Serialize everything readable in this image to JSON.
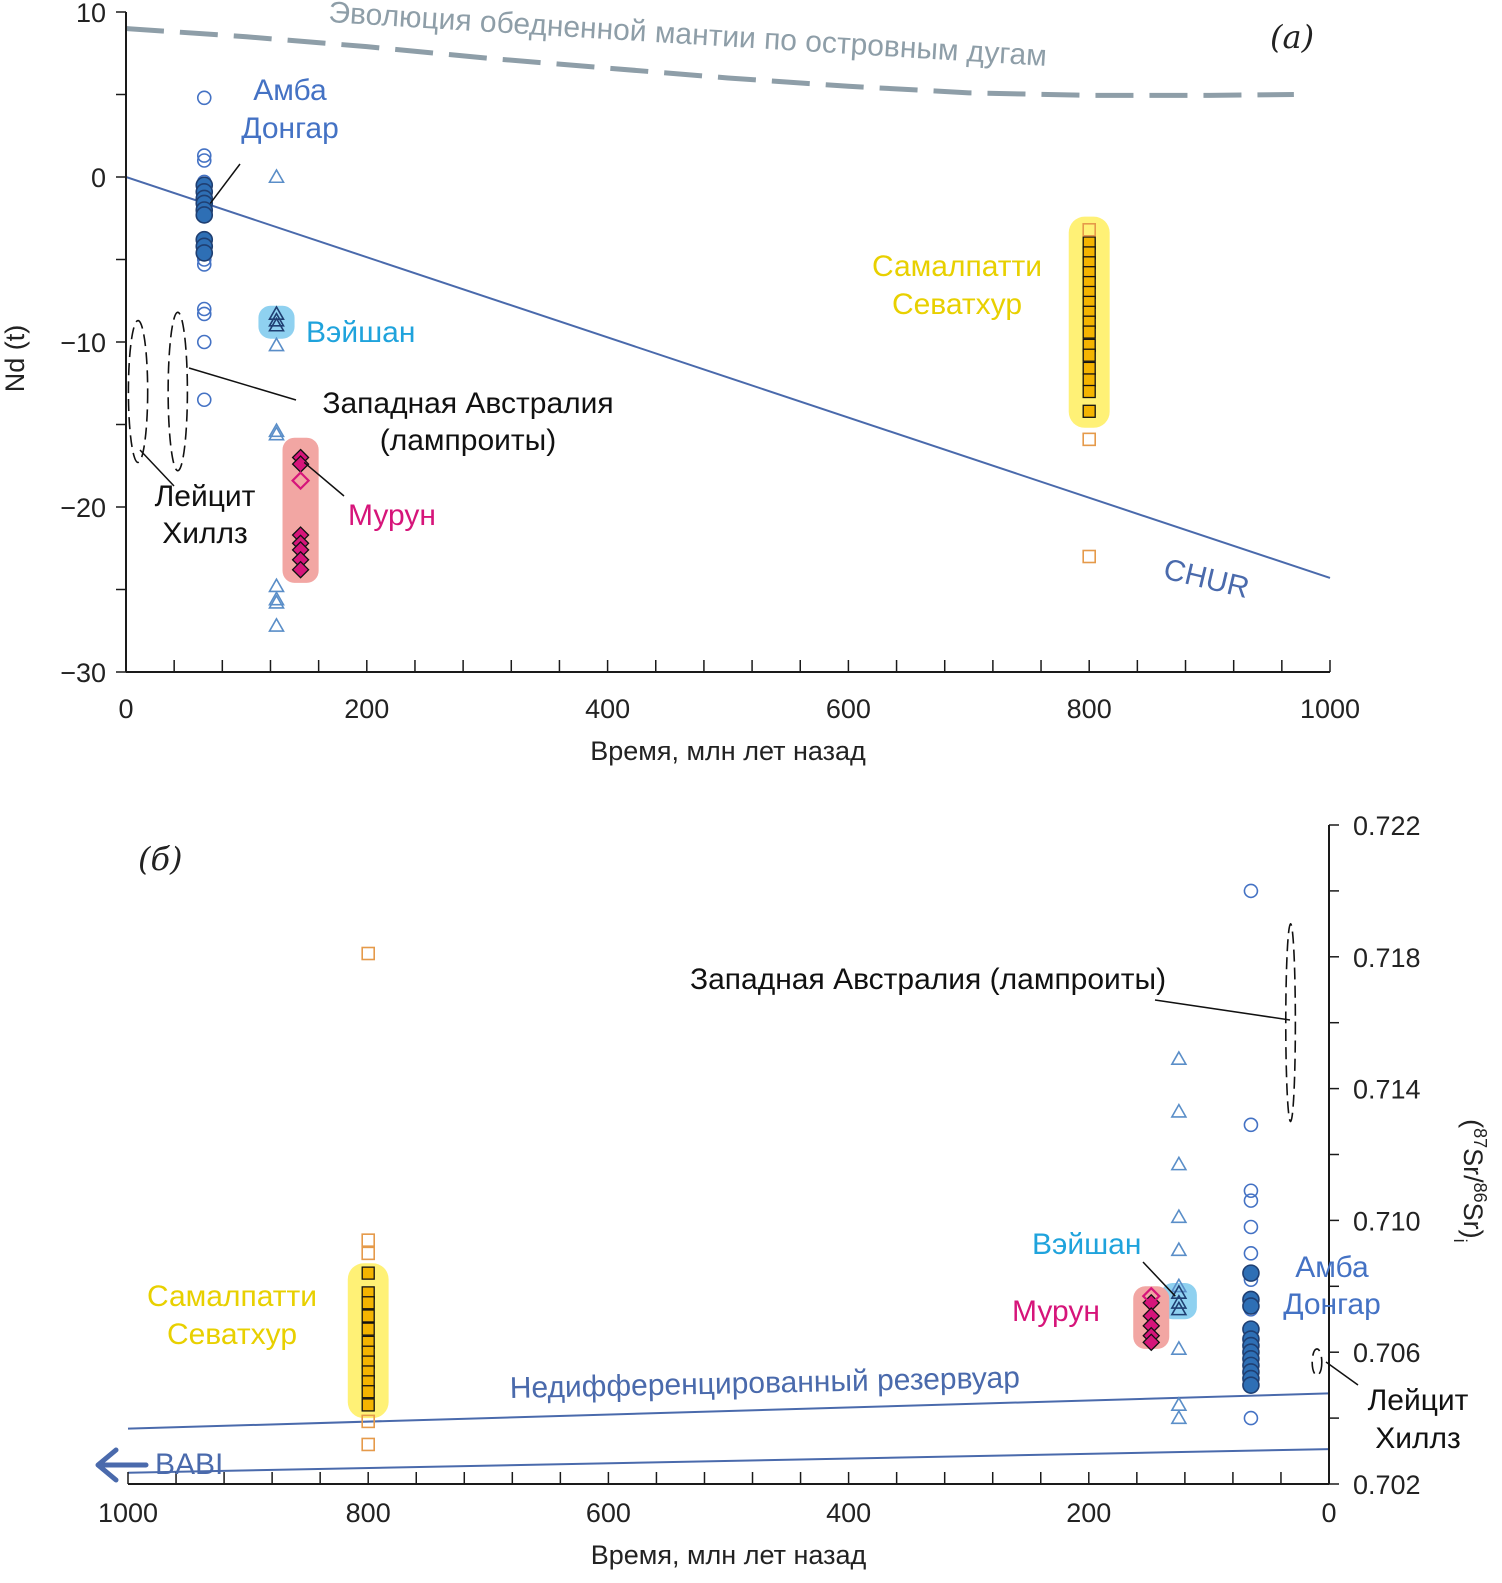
{
  "colors": {
    "axis": "#1a1a1a",
    "chur": "#4a6aac",
    "mantle": "#8e9ea8",
    "amba": "#4472c4",
    "amba_fill": "#2e6fb5",
    "weishan": "#1fa3dc",
    "weishan_hl": "#8fd1f0",
    "weishan_sym": "#5a8ec8",
    "murun": "#d6157a",
    "murun_hl": "#f2a6a3",
    "samal": "#e8d000",
    "samal_hl": "#fff176",
    "samal_fill": "#f4b400",
    "samal_open": "#e59a4a",
    "black": "#111111"
  },
  "chart_data": [
    {
      "id": "a",
      "type": "scatter",
      "panel_label": "(a)",
      "xlabel": "Время, млн лет назад",
      "ylabel": "Nd (t)",
      "xlim": [
        0,
        1000
      ],
      "ylim": [
        -30,
        10
      ],
      "x_ticks": [
        0,
        200,
        400,
        600,
        800,
        1000
      ],
      "x_tick_labels": [
        "0",
        "200",
        "400",
        "600",
        "800",
        "1000"
      ],
      "y_ticks": [
        -30,
        -20,
        -10,
        0,
        10
      ],
      "y_tick_labels": [
        "−30",
        "−20",
        "−10",
        "0",
        "10"
      ],
      "lines": [
        {
          "name": "CHUR",
          "label": "CHUR",
          "points": [
            [
              0,
              0
            ],
            [
              1000,
              -24.3
            ]
          ]
        },
        {
          "name": "mantle",
          "label": "Эволюция обедненной мантии по островным дугам",
          "dashed": true,
          "points": [
            [
              0,
              9.0
            ],
            [
              100,
              8.5
            ],
            [
              200,
              7.9
            ],
            [
              300,
              7.2
            ],
            [
              400,
              6.6
            ],
            [
              500,
              6.0
            ],
            [
              600,
              5.5
            ],
            [
              700,
              5.1
            ],
            [
              800,
              4.95
            ],
            [
              900,
              4.95
            ],
            [
              970,
              5.0
            ]
          ]
        }
      ],
      "groups": {
        "amba_open": {
          "x": 65,
          "y": [
            4.8,
            1.3,
            1.0,
            -0.3,
            -5.3,
            -5.0,
            -8.0,
            -8.3,
            -10.0,
            -13.5
          ]
        },
        "amba_filled": {
          "x": 65,
          "y": [
            -0.5,
            -0.9,
            -1.3,
            -1.6,
            -2.0,
            -2.3,
            -3.8,
            -4.2,
            -4.6
          ]
        },
        "weishan_open": {
          "x": 125,
          "y": [
            0.0,
            -10.2,
            -15.4,
            -15.6,
            -24.8,
            -25.6,
            -25.8,
            -27.2
          ]
        },
        "weishan_filled": {
          "x": 125,
          "y": [
            -8.3,
            -8.7,
            -9.0
          ]
        },
        "murun_filled": {
          "x": 145,
          "y": [
            -17.0,
            -17.4,
            -21.7,
            -22.2,
            -22.6,
            -23.2,
            -23.8
          ]
        },
        "murun_open": {
          "x": 145,
          "y": [
            -18.4
          ]
        },
        "samal_filled": {
          "x": 800,
          "y": [
            -4.0,
            -4.6,
            -5.2,
            -5.8,
            -6.4,
            -7.0,
            -7.6,
            -8.2,
            -8.8,
            -9.4,
            -10.2,
            -10.8,
            -11.6,
            -12.3,
            -13.0,
            -14.2
          ]
        },
        "samal_open": {
          "x": 800,
          "y": [
            -3.2,
            -15.9,
            -23.0
          ]
        }
      },
      "highlights": {
        "weishan": {
          "x": [
            110,
            140
          ],
          "y": [
            -7.8,
            -9.8
          ]
        },
        "murun": {
          "x": [
            130,
            160
          ],
          "y": [
            -15.8,
            -24.6
          ]
        },
        "samal": {
          "x": [
            783,
            817
          ],
          "y": [
            -2.4,
            -15.2
          ]
        }
      },
      "ellipses": [
        {
          "name": "leucite",
          "cx": 10,
          "cy": -13.0,
          "rx": 8,
          "ry": 4.3
        },
        {
          "name": "west-australia",
          "cx": 43,
          "cy": -13.0,
          "rx": 8,
          "ry": 4.8
        }
      ],
      "annotations": {
        "amba": "Амба\nДонгар",
        "weishan": "Вэйшан",
        "samal": "Самалпатти\nСеватхур",
        "wa": "Западная Австралия\n(лампроиты)",
        "leucite": "Лейцит\nХиллз",
        "murun": "Мурун"
      }
    },
    {
      "id": "b",
      "type": "scatter",
      "panel_label": "(б)",
      "xlabel": "Время, млн лет назад",
      "ylabel": "(87Sr/86Sr)i",
      "xlim": [
        1000,
        0
      ],
      "ylim": [
        0.702,
        0.722
      ],
      "x_ticks": [
        1000,
        800,
        600,
        400,
        200,
        0
      ],
      "x_tick_labels": [
        "1000",
        "800",
        "600",
        "400",
        "200",
        "0"
      ],
      "y_ticks": [
        0.702,
        0.706,
        0.71,
        0.714,
        0.718,
        0.722
      ],
      "y_tick_labels": [
        "0.702",
        "0.706",
        "0.710",
        "0.714",
        "0.718",
        "0.722"
      ],
      "lines": [
        {
          "name": "undiff",
          "label": "Недифференцированный резервуар",
          "points": [
            [
              1000,
              0.70368
            ],
            [
              0,
              0.70475
            ]
          ]
        },
        {
          "name": "babi",
          "label": "BABI",
          "points": [
            [
              1000,
              0.70234
            ],
            [
              0,
              0.70306
            ]
          ]
        }
      ],
      "groups": {
        "amba_open": {
          "x": 65,
          "y": [
            0.72,
            0.7129,
            0.7109,
            0.7106,
            0.7098,
            0.709,
            0.7082,
            0.7073,
            0.704
          ]
        },
        "amba_filled": {
          "x": 65,
          "y": [
            0.7084,
            0.7076,
            0.7074,
            0.7067,
            0.7064,
            0.7062,
            0.706,
            0.7058,
            0.7056,
            0.7054,
            0.7052,
            0.705
          ]
        },
        "weishan_open": {
          "x": 125,
          "y": [
            0.7149,
            0.7133,
            0.7117,
            0.7101,
            0.7091,
            0.708,
            0.7061,
            0.7044,
            0.704
          ]
        },
        "weishan_filled": {
          "x": 125,
          "y": [
            0.7078,
            0.7075,
            0.7073
          ]
        },
        "murun_filled": {
          "x": 148,
          "y": [
            0.7075,
            0.7071,
            0.7068,
            0.7065,
            0.7063
          ]
        },
        "murun_open": {
          "x": 148,
          "y": [
            0.7077
          ]
        },
        "samal_filled": {
          "x": 800,
          "y": [
            0.7084,
            0.7078,
            0.7075,
            0.7071,
            0.7067,
            0.7063,
            0.706,
            0.7057,
            0.7054,
            0.7051,
            0.7048,
            0.7044
          ]
        },
        "samal_open": {
          "x": 800,
          "y": [
            0.7181,
            0.7094,
            0.709,
            0.7039,
            0.7032
          ]
        }
      },
      "highlights": {
        "weishan": {
          "x": [
            110,
            140
          ],
          "y": [
            0.707,
            0.7081
          ]
        },
        "murun": {
          "x": [
            133,
            163
          ],
          "y": [
            0.7061,
            0.708
          ]
        },
        "samal": {
          "x": [
            783,
            817
          ],
          "y": [
            0.704,
            0.7087
          ]
        }
      },
      "ellipses": [
        {
          "name": "west-australia",
          "cx": 32,
          "cy": 0.716,
          "rx": 4,
          "ry": 0.003
        },
        {
          "name": "leucite",
          "cx": 10,
          "cy": 0.7057,
          "rx": 4,
          "ry": 0.0004
        }
      ],
      "annotations": {
        "amba": "Амба\nДонгар",
        "weishan": "Вэйшан",
        "samal": "Самалпатти\nСеватхур",
        "wa": "Западная Австралия (лампроиты)",
        "leucite": "Лейцит\nХиллз",
        "murun": "Мурун"
      }
    }
  ]
}
